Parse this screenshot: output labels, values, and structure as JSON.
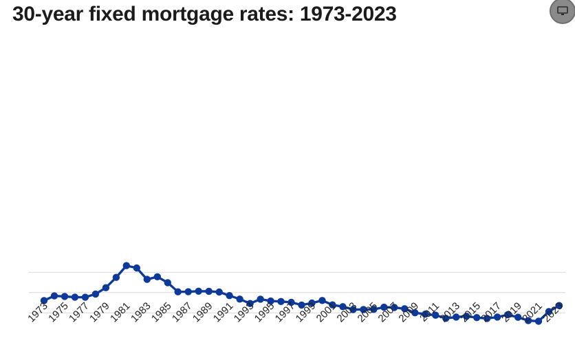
{
  "colors": {
    "line": "#0d3a99",
    "grid": "#d9d9d9",
    "title": "#1b1b1b",
    "button": "#8a8a8a"
  },
  "header": {
    "title": "30-year fixed mortgage rates: 1973-2023",
    "corner_icon": "monitor-icon"
  },
  "chart_data": {
    "type": "line",
    "title": "30-year fixed mortgage rates: 1973-2023",
    "xlabel": "",
    "ylabel": "",
    "grid": true,
    "ylim": [
      0,
      20
    ],
    "x": [
      1973,
      1974,
      1975,
      1976,
      1977,
      1978,
      1979,
      1980,
      1981,
      1982,
      1983,
      1984,
      1985,
      1986,
      1987,
      1988,
      1989,
      1990,
      1991,
      1992,
      1993,
      1994,
      1995,
      1996,
      1997,
      1998,
      1999,
      2000,
      2001,
      2002,
      2003,
      2004,
      2005,
      2006,
      2007,
      2008,
      2009,
      2010,
      2011,
      2012,
      2013,
      2014,
      2015,
      2016,
      2017,
      2018,
      2019,
      2020,
      2021,
      2022,
      2023
    ],
    "x_tick_labels": [
      "1973",
      "1975",
      "1977",
      "1979",
      "1981",
      "1983",
      "1985",
      "1987",
      "1989",
      "1991",
      "1993",
      "1995",
      "1997",
      "1999",
      "2001",
      "2003",
      "2005",
      "2007",
      "2009",
      "2011",
      "2013",
      "2015",
      "2017",
      "2019",
      "2021",
      "2023"
    ],
    "series": [
      {
        "values": [
          8.04,
          9.19,
          9.05,
          8.87,
          8.85,
          9.64,
          11.2,
          13.74,
          16.63,
          16.04,
          13.24,
          13.88,
          12.43,
          10.19,
          10.21,
          10.34,
          10.32,
          10.13,
          9.25,
          8.39,
          7.31,
          8.38,
          7.93,
          7.81,
          7.6,
          6.94,
          7.44,
          8.05,
          6.97,
          6.54,
          5.83,
          5.84,
          5.87,
          6.41,
          6.34,
          6.03,
          5.04,
          4.69,
          4.45,
          3.66,
          3.98,
          4.17,
          3.85,
          3.65,
          3.99,
          4.54,
          3.94,
          3.11,
          2.96,
          5.34,
          6.81
        ]
      }
    ]
  }
}
